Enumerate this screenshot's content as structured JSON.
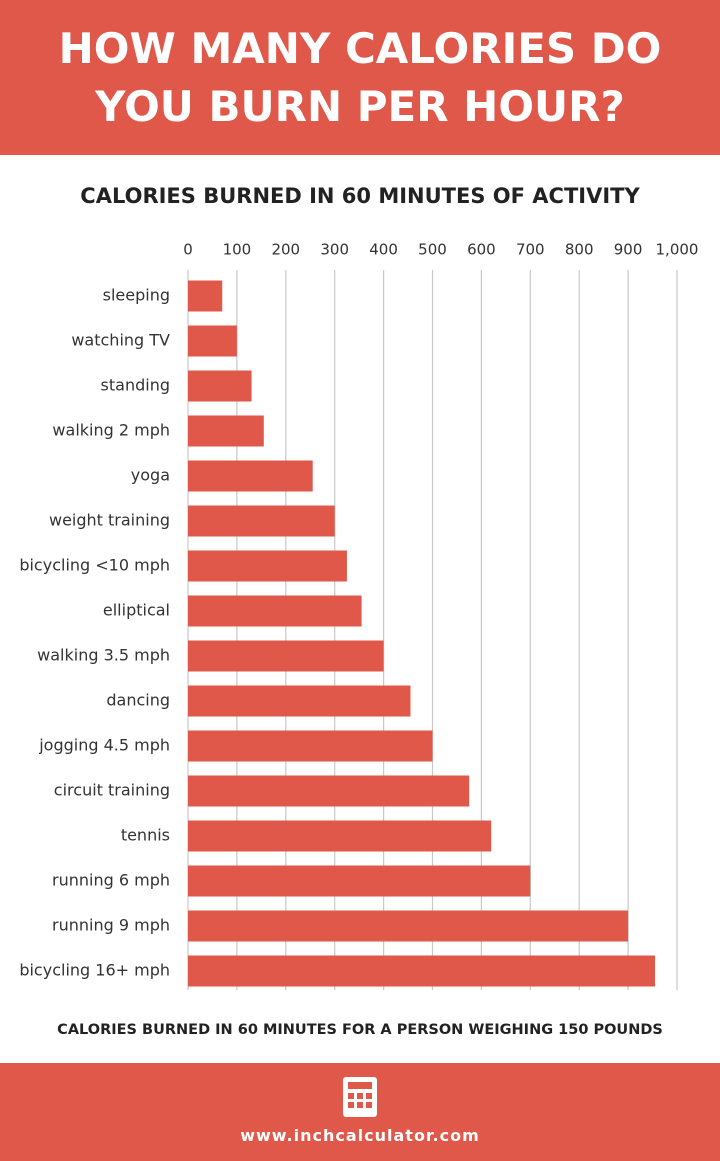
{
  "header": {
    "title": "HOW MANY CALORIES DO YOU BURN PER HOUR?"
  },
  "chart_data": {
    "type": "hbar",
    "title": "CALORIES BURNED IN 60 MINUTES OF ACTIVITY",
    "x_label": "CALORIES BURNED IN 60 MINUTES FOR A PERSON WEIGHING 150 POUNDS",
    "categories": [
      "sleeping",
      "watching TV",
      "standing",
      "walking 2 mph",
      "yoga",
      "weight training",
      "bicycling <10 mph",
      "elliptical",
      "walking 3.5 mph",
      "dancing",
      "jogging 4.5 mph",
      "circuit training",
      "tennis",
      "running 6 mph",
      "running 9 mph",
      "bicycling 16+ mph"
    ],
    "values": [
      70,
      100,
      130,
      155,
      255,
      300,
      325,
      355,
      400,
      455,
      500,
      575,
      620,
      700,
      900,
      955
    ],
    "color": "#e0584a",
    "xlim": [
      0,
      1000
    ],
    "xticks": [
      0,
      100,
      200,
      300,
      400,
      500,
      600,
      700,
      800,
      900,
      {
        "value": 1000,
        "label": "1,000"
      }
    ],
    "grid": true
  },
  "footer": {
    "url": "www.inchcalculator.com"
  }
}
